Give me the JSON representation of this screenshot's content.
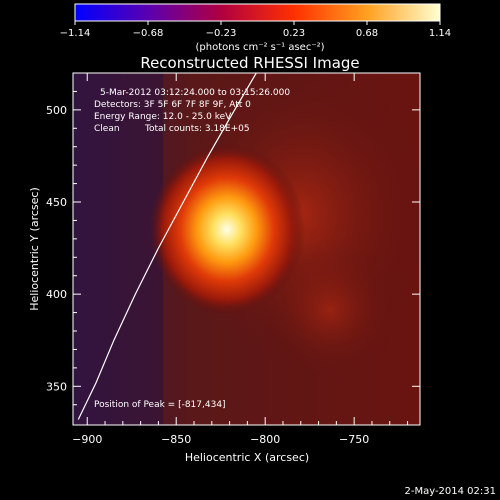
{
  "chart_data": {
    "type": "heatmap",
    "title": "Reconstructed RHESSI Image",
    "colorbar": {
      "ticks": [
        "-1.14",
        "-0.68",
        "-0.23",
        "0.23",
        "0.68",
        "1.14"
      ],
      "label": "(photons cm⁻² s⁻¹ asec⁻²)",
      "colormap": [
        "#0000ff",
        "#5a00b0",
        "#b00040",
        "#ff3000",
        "#ffa020",
        "#ffffd0"
      ]
    },
    "annotations": {
      "time_range": "5-Mar-2012 03:12:24.000 to 03:15:26.000",
      "detectors": "Detectors: 3F 5F 6F 7F 8F 9F, Att 0",
      "energy": "Energy Range: 12.0 - 25.0 keV",
      "clean": "Clean",
      "counts": "Total counts: 3.18E+05",
      "peak": "Position of Peak = [-817,434]"
    },
    "xlabel": "Heliocentric X (arcsec)",
    "ylabel": "Heliocentric Y (arcsec)",
    "xlim": [
      -908,
      -713
    ],
    "ylim": [
      329,
      520
    ],
    "x_ticks": [
      -900,
      -850,
      -800,
      -750
    ],
    "y_ticks": [
      350,
      400,
      450,
      500
    ],
    "x_tick_labels": [
      "−900",
      "−850",
      "−800",
      "−750"
    ],
    "y_tick_labels": [
      "350",
      "400",
      "450",
      "500"
    ],
    "peak": {
      "x": -817,
      "y": 434,
      "value": 1.14
    },
    "limb_curve": [
      {
        "x": -905,
        "y": 332
      },
      {
        "x": -895,
        "y": 352
      },
      {
        "x": -885,
        "y": 375
      },
      {
        "x": -873,
        "y": 400
      },
      {
        "x": -860,
        "y": 425
      },
      {
        "x": -846,
        "y": 450
      },
      {
        "x": -832,
        "y": 475
      },
      {
        "x": -819,
        "y": 497
      },
      {
        "x": -805,
        "y": 520
      }
    ]
  },
  "footer": {
    "timestamp": "2-May-2014 02:31"
  }
}
